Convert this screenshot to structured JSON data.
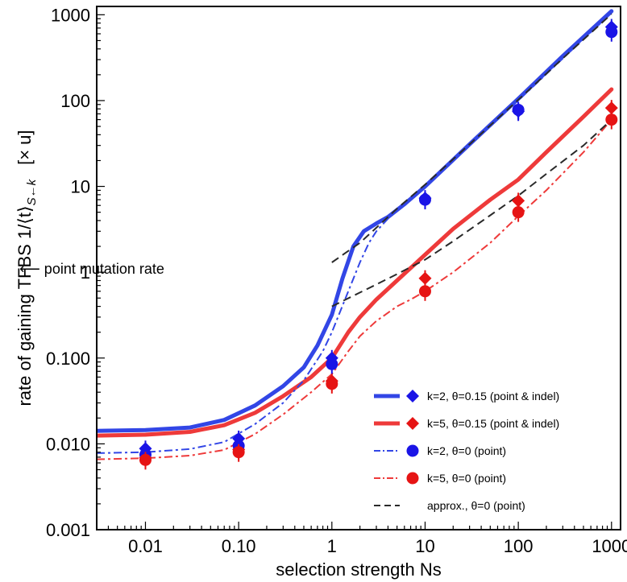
{
  "chart_data": {
    "type": "scatter",
    "title": "",
    "xlabel": "selection strength  Ns",
    "ylabel_main": "rate of gaining TFBS 1/⟨t⟩",
    "ylabel_sub": "S←k",
    "ylabel_unit": "[× u]",
    "xscale": "log",
    "yscale": "log",
    "xlim": [
      0.003,
      1250
    ],
    "ylim": [
      0.001,
      1250
    ],
    "x_ticks": [
      {
        "v": 0.01,
        "label": "0.01"
      },
      {
        "v": 0.1,
        "label": "0.10"
      },
      {
        "v": 1,
        "label": "1"
      },
      {
        "v": 10,
        "label": "10"
      },
      {
        "v": 100,
        "label": "100"
      },
      {
        "v": 1000,
        "label": "1000"
      }
    ],
    "y_ticks": [
      {
        "v": 0.001,
        "label": "0.001"
      },
      {
        "v": 0.01,
        "label": "0.010"
      },
      {
        "v": 0.1,
        "label": "0.100"
      },
      {
        "v": 1,
        "label": "1"
      },
      {
        "v": 10,
        "label": "10"
      },
      {
        "v": 100,
        "label": "100"
      },
      {
        "v": 1000,
        "label": "1000"
      }
    ],
    "grid": false,
    "legend_position": "bottom-right",
    "annotation": {
      "text": "⟵ point mutation rate",
      "y": 1
    },
    "colors": {
      "blue": "#3246e6",
      "red": "#ee3a3a",
      "blue_marker": "#1a14e6",
      "red_marker": "#e61414",
      "approx": "#2a2a2a"
    },
    "curves": [
      {
        "name": "k=2, θ=0.15 (point & indel)",
        "color": "#3246e6",
        "style": "solid",
        "width": 5,
        "points": [
          [
            0.003,
            0.0142
          ],
          [
            0.01,
            0.0145
          ],
          [
            0.03,
            0.0155
          ],
          [
            0.07,
            0.019
          ],
          [
            0.15,
            0.028
          ],
          [
            0.3,
            0.047
          ],
          [
            0.5,
            0.078
          ],
          [
            0.7,
            0.14
          ],
          [
            1,
            0.32
          ],
          [
            1.3,
            0.85
          ],
          [
            1.7,
            2.0
          ],
          [
            2.2,
            3.0
          ],
          [
            3,
            3.7
          ],
          [
            4,
            4.4
          ],
          [
            6,
            6.2
          ],
          [
            10,
            10
          ],
          [
            30,
            31
          ],
          [
            100,
            105
          ],
          [
            300,
            330
          ],
          [
            1000,
            1100
          ]
        ]
      },
      {
        "name": "k=5, θ=0.15 (point & indel)",
        "color": "#ee3a3a",
        "style": "solid",
        "width": 5,
        "points": [
          [
            0.003,
            0.0125
          ],
          [
            0.01,
            0.0128
          ],
          [
            0.03,
            0.0138
          ],
          [
            0.07,
            0.0165
          ],
          [
            0.15,
            0.023
          ],
          [
            0.3,
            0.036
          ],
          [
            0.6,
            0.06
          ],
          [
            1,
            0.1
          ],
          [
            1.5,
            0.2
          ],
          [
            2,
            0.3
          ],
          [
            3,
            0.48
          ],
          [
            5,
            0.8
          ],
          [
            10,
            1.6
          ],
          [
            20,
            3.2
          ],
          [
            50,
            7.0
          ],
          [
            100,
            12
          ],
          [
            200,
            25
          ],
          [
            500,
            65
          ],
          [
            1000,
            135
          ]
        ]
      },
      {
        "name": "k=2, θ=0 (point)",
        "color": "#3246e6",
        "style": "dashdot",
        "width": 2,
        "points": [
          [
            0.003,
            0.0078
          ],
          [
            0.01,
            0.008
          ],
          [
            0.03,
            0.0087
          ],
          [
            0.07,
            0.0105
          ],
          [
            0.15,
            0.017
          ],
          [
            0.3,
            0.03
          ],
          [
            0.5,
            0.055
          ],
          [
            0.8,
            0.12
          ],
          [
            1,
            0.2
          ],
          [
            1.5,
            0.6
          ],
          [
            2,
            1.3
          ],
          [
            2.5,
            2.2
          ],
          [
            3,
            3.0
          ],
          [
            4,
            4.2
          ],
          [
            6,
            6.2
          ],
          [
            10,
            10
          ],
          [
            30,
            31
          ],
          [
            100,
            100
          ],
          [
            300,
            310
          ],
          [
            1000,
            1050
          ]
        ]
      },
      {
        "name": "k=5, θ=0 (point)",
        "color": "#ee3a3a",
        "style": "dashdot",
        "width": 2,
        "points": [
          [
            0.003,
            0.0066
          ],
          [
            0.01,
            0.0068
          ],
          [
            0.03,
            0.0073
          ],
          [
            0.07,
            0.0085
          ],
          [
            0.15,
            0.013
          ],
          [
            0.3,
            0.022
          ],
          [
            0.6,
            0.04
          ],
          [
            1,
            0.065
          ],
          [
            1.5,
            0.12
          ],
          [
            2,
            0.18
          ],
          [
            3,
            0.27
          ],
          [
            5,
            0.4
          ],
          [
            7,
            0.48
          ],
          [
            10,
            0.6
          ],
          [
            20,
            1.0
          ],
          [
            50,
            2.2
          ],
          [
            100,
            4.5
          ],
          [
            200,
            9
          ],
          [
            500,
            25
          ],
          [
            1000,
            60
          ]
        ]
      },
      {
        "name": "approx., θ=0 (point)",
        "color": "#2a2a2a",
        "style": "dashed",
        "width": 2,
        "points": [
          [
            1,
            1.3
          ],
          [
            2,
            2.2
          ],
          [
            3,
            3.3
          ],
          [
            5,
            5.5
          ],
          [
            10,
            10.5
          ],
          [
            30,
            31
          ],
          [
            100,
            102
          ],
          [
            300,
            310
          ],
          [
            1000,
            1020
          ]
        ]
      },
      {
        "name": "",
        "color": "#2a2a2a",
        "style": "dashed",
        "width": 2,
        "points": [
          [
            1,
            0.4
          ],
          [
            2,
            0.58
          ],
          [
            3,
            0.72
          ],
          [
            5,
            0.95
          ],
          [
            10,
            1.4
          ],
          [
            20,
            2.3
          ],
          [
            50,
            4.6
          ],
          [
            100,
            7.8
          ],
          [
            200,
            14
          ],
          [
            500,
            30
          ],
          [
            1000,
            60
          ]
        ]
      }
    ],
    "markers": [
      {
        "series": "k=2, θ=0.15 (point & indel)",
        "shape": "diamond",
        "color": "#1a14e6",
        "x": [
          0.01,
          0.1,
          1,
          10,
          100,
          1000
        ],
        "y": [
          0.0088,
          0.0115,
          0.1,
          7.3,
          75,
          720
        ]
      },
      {
        "series": "k=5, θ=0.15 (point & indel)",
        "shape": "diamond",
        "color": "#e61414",
        "x": [
          0.01,
          0.1,
          1,
          10,
          100,
          1000
        ],
        "y": [
          0.0069,
          0.0086,
          0.054,
          0.85,
          6.8,
          82
        ]
      },
      {
        "series": "k=2, θ=0 (point)",
        "shape": "circle",
        "color": "#1a14e6",
        "x": [
          0.01,
          0.1,
          1,
          10,
          100,
          1000
        ],
        "y": [
          0.0075,
          0.0095,
          0.085,
          7.0,
          78,
          630
        ]
      },
      {
        "series": "k=5, θ=0 (point)",
        "shape": "circle",
        "color": "#e61414",
        "x": [
          0.01,
          0.1,
          1,
          10,
          100,
          1000
        ],
        "y": [
          0.0065,
          0.008,
          0.05,
          0.6,
          5.0,
          60
        ]
      }
    ],
    "legend": [
      {
        "label": "k=2, θ=0.15 (point & indel)",
        "line_style": "solid",
        "line_width": 5,
        "color": "#3246e6",
        "marker": "diamond",
        "marker_color": "#1a14e6"
      },
      {
        "label": "k=5, θ=0.15 (point & indel)",
        "line_style": "solid",
        "line_width": 5,
        "color": "#ee3a3a",
        "marker": "diamond",
        "marker_color": "#e61414"
      },
      {
        "label": "k=2, θ=0 (point)",
        "line_style": "dashdot",
        "line_width": 2,
        "color": "#3246e6",
        "marker": "circle",
        "marker_color": "#1a14e6"
      },
      {
        "label": "k=5, θ=0 (point)",
        "line_style": "dashdot",
        "line_width": 2,
        "color": "#ee3a3a",
        "marker": "circle",
        "marker_color": "#e61414"
      },
      {
        "label": "approx., θ=0 (point)",
        "line_style": "dashed",
        "line_width": 2,
        "color": "#2a2a2a",
        "marker": "",
        "marker_color": ""
      }
    ]
  }
}
